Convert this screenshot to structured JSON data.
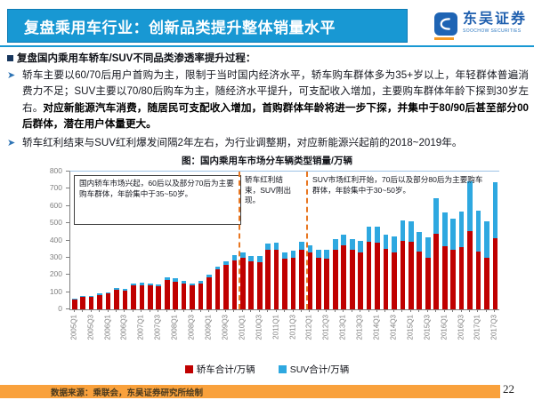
{
  "header": {
    "title": "复盘乘用车行业：创新品类提升整体销量水平",
    "logo": {
      "name_cn": "东吴证券",
      "name_en": "SOOCHOW SECURITIES"
    }
  },
  "body": {
    "heading": "复盘国内乘用车轿车/SUV不同品类渗透率提升过程：",
    "bullets": [
      {
        "text": "轿车主要以60/70后用户首购为主，限制于当时国内经济水平，轿车购车群体多为35+岁以上，年轻群体普遍消费力不足；SUV主要以70/80后购车为主，随经济水平提升，可支配收入增加，主要购车群体年龄下探到30岁左右。",
        "bold_text": "对应新能源汽车消费，随居民可支配收入增加，首购群体年龄将进一步下探，并集中于80/90后甚至部分00后群体，潜在用户体量更大。"
      },
      {
        "text": "轿车红利结束与SUV红利爆发间隔2年左右，为行业调整期，对应新能源兴起前的2018~2019年。",
        "bold_text": ""
      }
    ]
  },
  "chart_data": {
    "type": "bar",
    "stacked": true,
    "title": "图：国内乘用车市场分车辆类型销量/万辆",
    "ylim": [
      0,
      800
    ],
    "yticks": [
      0,
      100,
      200,
      300,
      400,
      500,
      600,
      700,
      800
    ],
    "xtick_step": 2,
    "legend_position": "bottom",
    "grid": false,
    "categories": [
      "2005Q1",
      "2005Q2",
      "2005Q3",
      "2005Q4",
      "2006Q1",
      "2006Q2",
      "2006Q3",
      "2006Q4",
      "2007Q1",
      "2007Q2",
      "2007Q3",
      "2007Q4",
      "2008Q1",
      "2008Q2",
      "2008Q3",
      "2008Q4",
      "2009Q1",
      "2009Q2",
      "2009Q3",
      "2009Q4",
      "2010Q1",
      "2010Q2",
      "2010Q3",
      "2010Q4",
      "2011Q1",
      "2011Q2",
      "2011Q3",
      "2011Q4",
      "2012Q1",
      "2012Q2",
      "2012Q3",
      "2012Q4",
      "2013Q1",
      "2013Q2",
      "2013Q3",
      "2013Q4",
      "2014Q1",
      "2014Q2",
      "2014Q3",
      "2014Q4",
      "2015Q1",
      "2015Q2",
      "2015Q3",
      "2015Q4",
      "2016Q1",
      "2016Q2",
      "2016Q3",
      "2016Q4",
      "2017Q1",
      "2017Q2",
      "2017Q3"
    ],
    "series": [
      {
        "name": "轿车合计/万辆",
        "color": "#C00000",
        "values": [
          55,
          70,
          72,
          85,
          92,
          113,
          110,
          140,
          142,
          140,
          133,
          170,
          162,
          150,
          137,
          152,
          186,
          230,
          256,
          286,
          298,
          280,
          274,
          344,
          344,
          292,
          300,
          344,
          330,
          298,
          293,
          344,
          370,
          344,
          330,
          390,
          386,
          350,
          330,
          396,
          390,
          335,
          300,
          440,
          366,
          345,
          359,
          452,
          337,
          297,
          414
        ]
      },
      {
        "name": "SUV合计/万辆",
        "color": "#2EA8E0",
        "values": [
          5,
          6,
          7,
          8,
          8,
          9,
          9,
          11,
          11,
          12,
          14,
          18,
          18,
          16,
          15,
          14,
          16,
          20,
          24,
          28,
          32,
          30,
          34,
          40,
          42,
          38,
          42,
          46,
          42,
          48,
          54,
          62,
          66,
          64,
          68,
          88,
          92,
          86,
          94,
          122,
          123,
          112,
          120,
          206,
          198,
          180,
          210,
          292,
          235,
          215,
          326
        ]
      }
    ],
    "annotations": [
      {
        "text": "国内轿车市场兴起，60后以及部分70后为主要购车群体，年龄集中于35~50岁。",
        "style": "boxed",
        "x_range": "2005Q1-2009Q4"
      },
      {
        "text": "轿车红利结束，SUV刚出现。",
        "style": "between-dashed-lines",
        "x_range": "2010Q1-2011Q4"
      },
      {
        "text": "SUV市场红利开始，70后以及部分80后为主要购车群体，年龄集中于30~50岁。",
        "style": "plain",
        "x_range": "2012Q1-2017Q3"
      }
    ],
    "dashed_lines_x": [
      "2010Q1",
      "2012Q1"
    ],
    "dashed_line_color": "#E87722"
  },
  "footer": {
    "source": "数据来源：乘联会，东吴证券研究所绘制",
    "page": "22"
  }
}
